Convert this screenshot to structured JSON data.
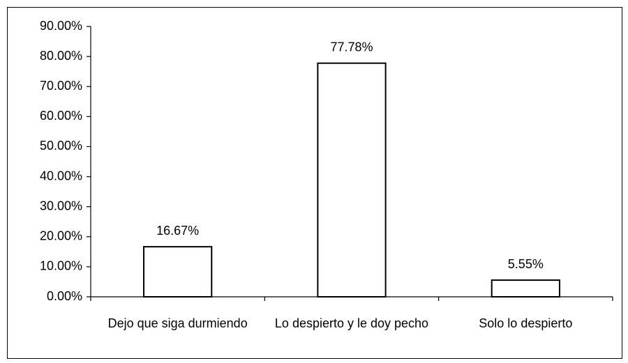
{
  "chart_data": {
    "type": "bar",
    "categories": [
      "Dejo que siga durmiendo",
      "Lo despierto y le doy pecho",
      "Solo lo despierto"
    ],
    "values": [
      16.67,
      77.78,
      5.55
    ],
    "value_labels": [
      "16.67%",
      "77.78%",
      "5.55%"
    ],
    "color": "#ffffff",
    "ylim": [
      0,
      90
    ],
    "yticks": [
      {
        "value": 0,
        "label": "0.00%"
      },
      {
        "value": 10,
        "label": "10.00%"
      },
      {
        "value": 20,
        "label": "20.00%"
      },
      {
        "value": 30,
        "label": "30.00%"
      },
      {
        "value": 40,
        "label": "40.00%"
      },
      {
        "value": 50,
        "label": "50.00%"
      },
      {
        "value": 60,
        "label": "60.00%"
      },
      {
        "value": 70,
        "label": "70.00%"
      },
      {
        "value": 80,
        "label": "80.00%"
      },
      {
        "value": 90,
        "label": "90.00%"
      }
    ],
    "grid": false
  }
}
